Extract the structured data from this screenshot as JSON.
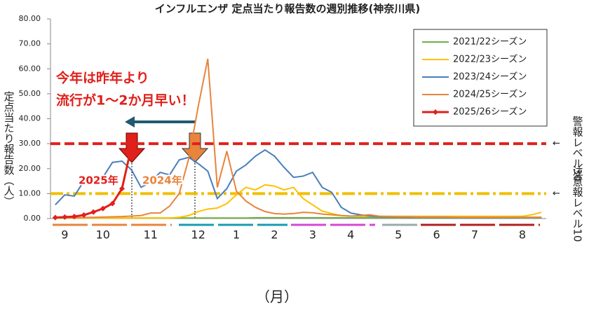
{
  "chart_data": {
    "type": "line",
    "title": "インフルエンザ 定点当たり報告数の週別推移(神奈川県)",
    "y_label": "定点当たり報告数（人）",
    "x_label": "（月）",
    "categories": [
      null,
      "9",
      null,
      null,
      null,
      "10",
      null,
      null,
      null,
      null,
      "11",
      null,
      null,
      null,
      null,
      "12",
      null,
      null,
      null,
      "1",
      null,
      null,
      null,
      "2",
      null,
      null,
      null,
      "3",
      null,
      null,
      null,
      "4",
      null,
      null,
      null,
      null,
      "5",
      null,
      null,
      null,
      "6",
      null,
      null,
      null,
      "7",
      null,
      null,
      null,
      null,
      "8",
      null,
      null
    ],
    "ylim": [
      0,
      80
    ],
    "yticks": [
      {
        "value": 0,
        "label": "0.00"
      },
      {
        "value": 10,
        "label": "10.00"
      },
      {
        "value": 20,
        "label": "20.00"
      },
      {
        "value": 30,
        "label": "30.00"
      },
      {
        "value": 40,
        "label": "40.00"
      },
      {
        "value": 50,
        "label": "50.00"
      },
      {
        "value": 60,
        "label": "60.00"
      },
      {
        "value": 70,
        "label": "70.00"
      },
      {
        "value": 80,
        "label": "80.00"
      }
    ],
    "grid": false,
    "legend": "top-right",
    "series": [
      {
        "name": "2021/22シーズン",
        "color": "#70ad47",
        "values": [
          0.2,
          0.2,
          0.2,
          0.2,
          0.2,
          0.2,
          0.2,
          0.2,
          0.2,
          0.2,
          0.2,
          0.2,
          0.2,
          0.2,
          0.2,
          0.2,
          0.2,
          0.2,
          0.2,
          0.2,
          0.2,
          0.3,
          0.3,
          0.3,
          0.3,
          0.3,
          0.3,
          0.3,
          0.3,
          0.3,
          0.3,
          0.3,
          0.3,
          0.3,
          0.3,
          0.3,
          0.3,
          0.3,
          0.3,
          0.3,
          0.3,
          0.3,
          0.3,
          0.3,
          0.3,
          0.3,
          0.3,
          0.3,
          0.3,
          0.3,
          0.3,
          0.3
        ]
      },
      {
        "name": "2022/23シーズン",
        "color": "#ffc000",
        "values": [
          0.2,
          0.2,
          0.2,
          0.2,
          0.2,
          0.2,
          0.2,
          0.2,
          0.2,
          0.2,
          0.2,
          0.2,
          0.2,
          0.5,
          1.2,
          2.8,
          3.8,
          4.2,
          6.0,
          9.5,
          12.5,
          11.5,
          13.5,
          13.0,
          11.5,
          12.5,
          8.0,
          5.5,
          3.0,
          2.0,
          1.2,
          1.0,
          0.9,
          0.9,
          0.9,
          0.9,
          0.9,
          0.9,
          0.9,
          0.9,
          0.9,
          0.9,
          0.9,
          0.9,
          0.9,
          0.9,
          0.9,
          0.9,
          0.9,
          0.9,
          1.5,
          2.5
        ]
      },
      {
        "name": "2023/24シーズン",
        "color": "#4a7ebb",
        "values": [
          5.5,
          9.5,
          9.0,
          15.0,
          15.8,
          16.5,
          22.5,
          23.0,
          19.5,
          12.5,
          14.5,
          18.5,
          17.5,
          23.5,
          24.5,
          22.0,
          19.0,
          8.0,
          12.0,
          19.0,
          21.5,
          25.0,
          27.5,
          25.0,
          20.5,
          16.5,
          17.0,
          18.5,
          12.5,
          10.5,
          4.5,
          2.2,
          1.5,
          1.0,
          0.8,
          0.7,
          0.6,
          0.5,
          0.5,
          0.5,
          0.5,
          0.5,
          0.4,
          0.4,
          0.4,
          0.4,
          0.4,
          0.4,
          0.4,
          0.5,
          0.5,
          0.5
        ]
      },
      {
        "name": "2024/25シーズン",
        "color": "#e8843c",
        "values": [
          0.3,
          0.3,
          0.3,
          0.4,
          0.5,
          0.6,
          0.7,
          0.8,
          1.0,
          1.2,
          2.2,
          2.2,
          5.0,
          10.0,
          24.0,
          45.0,
          64.0,
          12.5,
          27.0,
          11.0,
          7.0,
          4.5,
          2.8,
          2.0,
          1.8,
          2.0,
          2.5,
          2.3,
          1.8,
          1.5,
          1.2,
          1.0,
          1.2,
          1.5,
          0.9,
          0.8,
          0.7,
          0.7,
          0.6,
          0.6,
          0.6,
          0.6,
          0.5,
          0.5,
          0.5,
          0.5,
          0.5,
          0.5,
          0.5,
          0.5,
          0.5,
          0.5
        ]
      },
      {
        "name": "2025/26シーズン",
        "color": "#e0201b",
        "marker": "diamond",
        "values": [
          0.4,
          0.6,
          0.8,
          1.4,
          2.6,
          4.0,
          6.0,
          12.0,
          28.9,
          null,
          null,
          null,
          null,
          null,
          null,
          null,
          null,
          null,
          null,
          null,
          null,
          null,
          null,
          null,
          null,
          null,
          null,
          null,
          null,
          null,
          null,
          null,
          null,
          null,
          null,
          null,
          null,
          null,
          null,
          null,
          null,
          null,
          null,
          null,
          null,
          null,
          null,
          null,
          null,
          null,
          null,
          null
        ]
      }
    ],
    "reference_lines": [
      {
        "value": 30,
        "label": "警報レベル30",
        "arrow": "←",
        "color": "#e0201b"
      },
      {
        "value": 10,
        "label": "注意報レベル10",
        "arrow": "←",
        "color": "#f0c000"
      }
    ],
    "annotations": {
      "headline": [
        "今年は昨年より",
        "流行が1～2か月早い！"
      ],
      "label_2025": "2025年",
      "label_2024": "2024年"
    }
  }
}
